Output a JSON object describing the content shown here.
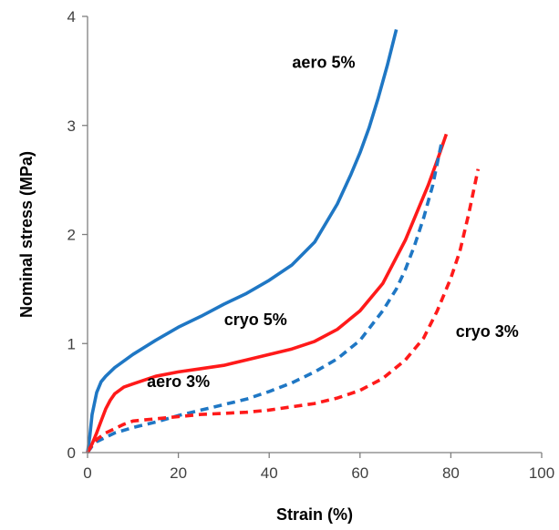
{
  "chart_data": {
    "type": "line",
    "xlabel": "Strain (%)",
    "ylabel": "Nominal stress (MPa)",
    "xlim": [
      0,
      100
    ],
    "ylim": [
      0,
      4
    ],
    "xticks": [
      0,
      20,
      40,
      60,
      80,
      100
    ],
    "yticks": [
      0,
      1,
      2,
      3,
      4
    ],
    "grid": false,
    "legend": "none (inline labels)",
    "series": [
      {
        "name": "aero 5%",
        "color": "#1f77c4",
        "style": "solid",
        "x": [
          0,
          0.5,
          1,
          2,
          3,
          4,
          6,
          10,
          15,
          20,
          25,
          30,
          35,
          40,
          45,
          50,
          55,
          58,
          60,
          62,
          64,
          66,
          68
        ],
        "y": [
          0,
          0.15,
          0.35,
          0.55,
          0.65,
          0.7,
          0.78,
          0.9,
          1.03,
          1.15,
          1.25,
          1.36,
          1.46,
          1.58,
          1.72,
          1.93,
          2.28,
          2.55,
          2.75,
          2.98,
          3.25,
          3.55,
          3.88
        ]
      },
      {
        "name": "cryo 5%",
        "color": "#ff1a1a",
        "style": "solid",
        "x": [
          0,
          1,
          2,
          3,
          4,
          5,
          6,
          7,
          8,
          10,
          15,
          20,
          25,
          30,
          35,
          40,
          45,
          50,
          55,
          60,
          65,
          70,
          73,
          75,
          77,
          79
        ],
        "y": [
          0,
          0.08,
          0.18,
          0.29,
          0.4,
          0.48,
          0.54,
          0.57,
          0.6,
          0.63,
          0.7,
          0.74,
          0.77,
          0.8,
          0.85,
          0.9,
          0.95,
          1.02,
          1.13,
          1.3,
          1.55,
          1.95,
          2.25,
          2.45,
          2.68,
          2.92
        ]
      },
      {
        "name": "aero 3%",
        "color": "#1f77c4",
        "style": "dashed",
        "x": [
          0,
          1,
          2,
          4,
          6,
          10,
          15,
          20,
          25,
          30,
          35,
          40,
          45,
          50,
          55,
          60,
          65,
          68,
          70,
          72,
          74,
          76,
          78
        ],
        "y": [
          0,
          0.06,
          0.1,
          0.14,
          0.18,
          0.23,
          0.28,
          0.34,
          0.39,
          0.44,
          0.49,
          0.56,
          0.64,
          0.74,
          0.86,
          1.03,
          1.3,
          1.5,
          1.68,
          1.9,
          2.15,
          2.45,
          2.85
        ]
      },
      {
        "name": "cryo 3%",
        "color": "#ff1a1a",
        "style": "dashed",
        "x": [
          0,
          1,
          2,
          4,
          6,
          8,
          10,
          15,
          20,
          25,
          30,
          35,
          40,
          45,
          50,
          55,
          60,
          65,
          70,
          74,
          77,
          80,
          82,
          84,
          86
        ],
        "y": [
          0,
          0.07,
          0.12,
          0.18,
          0.22,
          0.26,
          0.29,
          0.31,
          0.33,
          0.35,
          0.36,
          0.37,
          0.39,
          0.42,
          0.45,
          0.5,
          0.57,
          0.68,
          0.85,
          1.05,
          1.3,
          1.6,
          1.85,
          2.2,
          2.6
        ]
      }
    ],
    "annotations": [
      {
        "text": "aero 5%",
        "x": 52,
        "y": 3.53
      },
      {
        "text": "cryo 5%",
        "x": 37,
        "y": 1.17
      },
      {
        "text": "aero 3%",
        "x": 20,
        "y": 0.6
      },
      {
        "text": "cryo 3%",
        "x": 88,
        "y": 1.06
      }
    ]
  }
}
